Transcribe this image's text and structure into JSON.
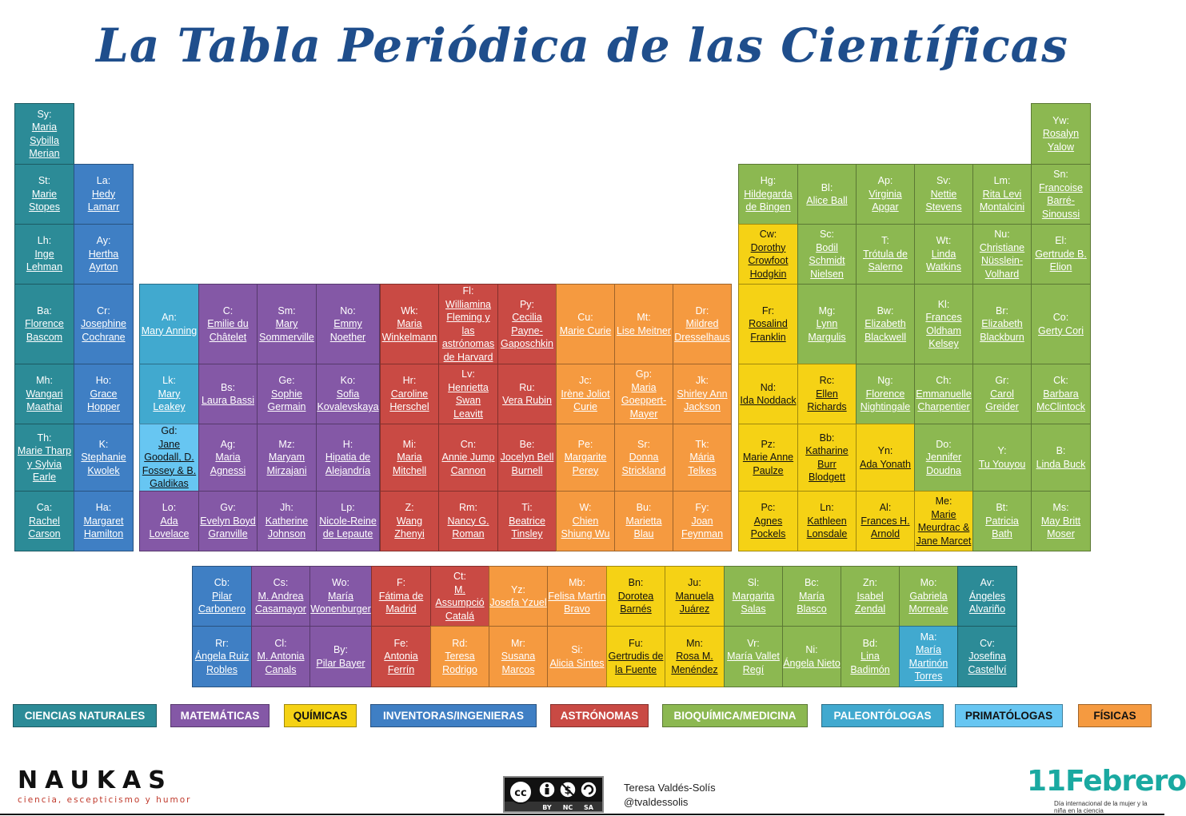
{
  "title": "La Tabla Periódica de las Científicas",
  "colors": {
    "naturales": "#2c8b97",
    "matematicas": "#8458a6",
    "quimicas": "#f5d215",
    "inventoras": "#3f7fc4",
    "astronomas": "#c94a44",
    "bioquimica": "#8cb851",
    "paleontologas": "#41a9cf",
    "primatologas": "#67c6f2",
    "fisicas": "#f59a40"
  },
  "legend": [
    {
      "label": "CIENCIAS NATURALES",
      "cat": "naturales"
    },
    {
      "label": "MATEMÁTICAS",
      "cat": "matematicas"
    },
    {
      "label": "QUÍMICAS",
      "cat": "quimicas"
    },
    {
      "label": "INVENTORAS/INGENIERAS",
      "cat": "inventoras"
    },
    {
      "label": "ASTRÓNOMAS",
      "cat": "astronomas"
    },
    {
      "label": "BIOQUÍMICA/MEDICINA",
      "cat": "bioquimica"
    },
    {
      "label": "PALEONTÓLOGAS",
      "cat": "paleontologas"
    },
    {
      "label": "PRIMATÓLOGAS",
      "cat": "primatologas"
    },
    {
      "label": "FÍSICAS",
      "cat": "fisicas"
    }
  ],
  "elements": [
    {
      "sym": "Sy:",
      "name": "Maria\nSybilla\nMerian",
      "cat": "naturales"
    },
    {
      "sym": "St:",
      "name": "Marie\nStopes",
      "cat": "naturales"
    },
    {
      "sym": "La:",
      "name": "Hedy\nLamarr",
      "cat": "inventoras"
    },
    {
      "sym": "Lh:",
      "name": "Inge\nLehman",
      "cat": "naturales"
    },
    {
      "sym": "Ay:",
      "name": "Hertha\nAyrton",
      "cat": "inventoras"
    },
    {
      "sym": "Ba:",
      "name": "Florence\nBascom",
      "cat": "naturales"
    },
    {
      "sym": "Cr:",
      "name": "Josephine\nCochrane",
      "cat": "inventoras"
    },
    {
      "sym": "Mh:",
      "name": "Wangari\nMaathai",
      "cat": "naturales"
    },
    {
      "sym": "Ho:",
      "name": "Grace\nHopper",
      "cat": "inventoras"
    },
    {
      "sym": "Th:",
      "name": "Marie Tharp\ny Sylvia\nEarle",
      "cat": "naturales"
    },
    {
      "sym": "K:",
      "name": "Stephanie\nKwolek",
      "cat": "inventoras"
    },
    {
      "sym": "Ca:",
      "name": "Rachel\nCarson",
      "cat": "naturales"
    },
    {
      "sym": "Ha:",
      "name": "Margaret\nHamilton",
      "cat": "inventoras"
    },
    {
      "sym": "An:",
      "name": "Mary Anning",
      "cat": "paleontologas"
    },
    {
      "sym": "C:",
      "name": "Emilie du\nChâtelet",
      "cat": "matematicas"
    },
    {
      "sym": "Sm:",
      "name": "Mary\nSommerville",
      "cat": "matematicas"
    },
    {
      "sym": "No:",
      "name": "Emmy\nNoether",
      "cat": "matematicas"
    },
    {
      "sym": "Wk:",
      "name": "Maria\nWinkelmann",
      "cat": "astronomas"
    },
    {
      "sym": "Fl:",
      "name": "Williamina\nFleming y\nlas\nastrónomas\nde Harvard",
      "cat": "astronomas"
    },
    {
      "sym": "Py:",
      "name": "Cecilia\nPayne-\nGaposchkin",
      "cat": "astronomas"
    },
    {
      "sym": "Cu:",
      "name": "Marie Curie",
      "cat": "fisicas"
    },
    {
      "sym": "Mt:",
      "name": "Lise Meitner",
      "cat": "fisicas"
    },
    {
      "sym": "Dr:",
      "name": "Mildred\nDresselhaus",
      "cat": "fisicas"
    },
    {
      "sym": "Lk:",
      "name": "Mary\nLeakey",
      "cat": "paleontologas"
    },
    {
      "sym": "Bs:",
      "name": "Laura Bassi",
      "cat": "matematicas"
    },
    {
      "sym": "Ge:",
      "name": "Sophie\nGermain",
      "cat": "matematicas"
    },
    {
      "sym": "Ko:",
      "name": "Sofia\nKovalevskaya",
      "cat": "matematicas"
    },
    {
      "sym": "Hr:",
      "name": "Caroline\nHerschel",
      "cat": "astronomas"
    },
    {
      "sym": "Lv:",
      "name": "Henrietta\nSwan\nLeavitt",
      "cat": "astronomas"
    },
    {
      "sym": "Ru:",
      "name": "Vera Rubin",
      "cat": "astronomas"
    },
    {
      "sym": "Jc:",
      "name": "Irène Joliot\nCurie",
      "cat": "fisicas"
    },
    {
      "sym": "Gp:",
      "name": "Maria\nGoeppert-\nMayer",
      "cat": "fisicas"
    },
    {
      "sym": "Jk:",
      "name": "Shirley Ann\nJackson",
      "cat": "fisicas"
    },
    {
      "sym": "Gd:",
      "name": "Jane\nGoodall, D.\nFossey & B.\nGaldikas",
      "cat": "primatologas"
    },
    {
      "sym": "Ag:",
      "name": "Maria\nAgnessi",
      "cat": "matematicas"
    },
    {
      "sym": "Mz:",
      "name": "Maryam\nMirzajani",
      "cat": "matematicas"
    },
    {
      "sym": "H:",
      "name": "Hipatia de\nAlejandría",
      "cat": "matematicas"
    },
    {
      "sym": "Mi:",
      "name": "Maria\nMitchell",
      "cat": "astronomas"
    },
    {
      "sym": "Cn:",
      "name": "Annie Jump\nCannon",
      "cat": "astronomas"
    },
    {
      "sym": "Be:",
      "name": "Jocelyn Bell\nBurnell",
      "cat": "astronomas"
    },
    {
      "sym": "Pe:",
      "name": "Margarite\nPerey",
      "cat": "fisicas"
    },
    {
      "sym": "Sr:",
      "name": "Donna\nStrickland",
      "cat": "fisicas"
    },
    {
      "sym": "Tk:",
      "name": "Mária\nTelkes",
      "cat": "fisicas"
    },
    {
      "sym": "Lo:",
      "name": "Ada\nLovelace",
      "cat": "matematicas"
    },
    {
      "sym": "Gv:",
      "name": "Evelyn Boyd\nGranville",
      "cat": "matematicas"
    },
    {
      "sym": "Jh:",
      "name": "Katherine\nJohnson",
      "cat": "matematicas"
    },
    {
      "sym": "Lp:",
      "name": "Nicole-Reine\nde Lepaute",
      "cat": "matematicas"
    },
    {
      "sym": "Z:",
      "name": "Wang\nZhenyi",
      "cat": "astronomas"
    },
    {
      "sym": "Rm:",
      "name": "Nancy G.\nRoman",
      "cat": "astronomas"
    },
    {
      "sym": "Ti:",
      "name": "Beatrice\nTinsley",
      "cat": "astronomas"
    },
    {
      "sym": "W:",
      "name": "Chien\nShiung Wu",
      "cat": "fisicas"
    },
    {
      "sym": "Bu:",
      "name": "Marietta\nBlau",
      "cat": "fisicas"
    },
    {
      "sym": "Fy:",
      "name": "Joan\nFeynman",
      "cat": "fisicas"
    },
    {
      "sym": "Yw:",
      "name": "Rosalyn\nYalow",
      "cat": "bioquimica"
    },
    {
      "sym": "Hg:",
      "name": "Hildegarda\nde Bingen",
      "cat": "bioquimica"
    },
    {
      "sym": "Bl:",
      "name": "Alice Ball",
      "cat": "bioquimica"
    },
    {
      "sym": "Ap:",
      "name": "Virginia\nApgar",
      "cat": "bioquimica"
    },
    {
      "sym": "Sv:",
      "name": "Nettie\nStevens",
      "cat": "bioquimica"
    },
    {
      "sym": "Lm:",
      "name": "Rita Levi\nMontalcini",
      "cat": "bioquimica"
    },
    {
      "sym": "Sn:",
      "name": "Francoise\nBarré-\nSinoussi",
      "cat": "bioquimica"
    },
    {
      "sym": "Cw:",
      "name": "Dorothy\nCrowfoot\nHodgkin",
      "cat": "quimicas"
    },
    {
      "sym": "Sc:",
      "name": "Bodil\nSchmidt\nNielsen",
      "cat": "bioquimica"
    },
    {
      "sym": "T:",
      "name": "Trótula de\nSalerno",
      "cat": "bioquimica"
    },
    {
      "sym": "Wt:",
      "name": "Linda\nWatkins",
      "cat": "bioquimica"
    },
    {
      "sym": "Nu:",
      "name": "Christiane\nNüsslein-\nVolhard",
      "cat": "bioquimica"
    },
    {
      "sym": "El:",
      "name": "Gertrude B.\nElion",
      "cat": "bioquimica"
    },
    {
      "sym": "Fr:",
      "name": "Rosalind\nFranklin",
      "cat": "quimicas"
    },
    {
      "sym": "Mg:",
      "name": "Lynn\nMargulis",
      "cat": "bioquimica"
    },
    {
      "sym": "Bw:",
      "name": "Elizabeth\nBlackwell",
      "cat": "bioquimica"
    },
    {
      "sym": "Kl:",
      "name": "Frances\nOldham\nKelsey",
      "cat": "bioquimica"
    },
    {
      "sym": "Br:",
      "name": "Elizabeth\nBlackburn",
      "cat": "bioquimica"
    },
    {
      "sym": "Co:",
      "name": "Gerty Cori",
      "cat": "bioquimica"
    },
    {
      "sym": "Nd:",
      "name": "Ida Noddack",
      "cat": "quimicas"
    },
    {
      "sym": "Rc:",
      "name": "Ellen\nRichards",
      "cat": "quimicas"
    },
    {
      "sym": "Ng:",
      "name": "Florence\nNightingale",
      "cat": "bioquimica"
    },
    {
      "sym": "Ch:",
      "name": "Emmanuelle\nCharpentier",
      "cat": "bioquimica"
    },
    {
      "sym": "Gr:",
      "name": "Carol\nGreider",
      "cat": "bioquimica"
    },
    {
      "sym": "Ck:",
      "name": "Barbara\nMcClintock",
      "cat": "bioquimica"
    },
    {
      "sym": "Pz:",
      "name": "Marie Anne\nPaulze",
      "cat": "quimicas"
    },
    {
      "sym": "Bb:",
      "name": "Katharine\nBurr\nBlodgett",
      "cat": "quimicas"
    },
    {
      "sym": "Yn:",
      "name": "Ada Yonath",
      "cat": "quimicas"
    },
    {
      "sym": "Do:",
      "name": "Jennifer\nDoudna",
      "cat": "bioquimica"
    },
    {
      "sym": "Y:",
      "name": "Tu Youyou",
      "cat": "bioquimica"
    },
    {
      "sym": "B:",
      "name": "Linda Buck",
      "cat": "bioquimica"
    },
    {
      "sym": "Pc:",
      "name": "Agnes\nPockels",
      "cat": "quimicas"
    },
    {
      "sym": "Ln:",
      "name": "Kathleen\nLonsdale",
      "cat": "quimicas"
    },
    {
      "sym": "Al:",
      "name": "Frances H.\nArnold",
      "cat": "quimicas"
    },
    {
      "sym": "Me:",
      "name": "Marie\nMeurdrac &\nJane Marcet",
      "cat": "quimicas"
    },
    {
      "sym": "Bt:",
      "name": "Patricia\nBath",
      "cat": "bioquimica"
    },
    {
      "sym": "Ms:",
      "name": "May Britt\nMoser",
      "cat": "bioquimica"
    },
    {
      "sym": "Cb:",
      "name": "Pilar\nCarbonero",
      "cat": "inventoras"
    },
    {
      "sym": "Cs:",
      "name": "M. Andrea\nCasamayor",
      "cat": "matematicas"
    },
    {
      "sym": "Wo:",
      "name": "María\nWonenburger",
      "cat": "matematicas"
    },
    {
      "sym": "F:",
      "name": "Fátima de\nMadrid",
      "cat": "astronomas"
    },
    {
      "sym": "Ct:",
      "name": "M.\nAssumpció\nCatalá",
      "cat": "astronomas"
    },
    {
      "sym": "Yz:",
      "name": "Josefa Yzuel",
      "cat": "fisicas"
    },
    {
      "sym": "Mb:",
      "name": "Felisa Martín\nBravo",
      "cat": "fisicas"
    },
    {
      "sym": "Bn:",
      "name": "Dorotea\nBarnés",
      "cat": "quimicas"
    },
    {
      "sym": "Ju:",
      "name": "Manuela\nJuárez",
      "cat": "quimicas"
    },
    {
      "sym": "Sl:",
      "name": "Margarita\nSalas",
      "cat": "bioquimica"
    },
    {
      "sym": "Bc:",
      "name": "María Blasco",
      "cat": "bioquimica"
    },
    {
      "sym": "Zn:",
      "name": "Isabel\nZendal",
      "cat": "bioquimica"
    },
    {
      "sym": "Mo:",
      "name": "Gabriela\nMorreale",
      "cat": "bioquimica"
    },
    {
      "sym": "Av:",
      "name": "Ángeles\nAlvariño",
      "cat": "naturales"
    },
    {
      "sym": "Rr:",
      "name": "Ángela Ruiz\nRobles",
      "cat": "inventoras"
    },
    {
      "sym": "Cl:",
      "name": "M. Antonia\nCanals",
      "cat": "matematicas"
    },
    {
      "sym": "By:",
      "name": "Pilar Bayer",
      "cat": "matematicas"
    },
    {
      "sym": "Fe:",
      "name": "Antonia\nFerrín",
      "cat": "astronomas"
    },
    {
      "sym": "Rd:",
      "name": "Teresa\nRodrigo",
      "cat": "fisicas"
    },
    {
      "sym": "Mr:",
      "name": "Susana\nMarcos",
      "cat": "fisicas"
    },
    {
      "sym": "Si:",
      "name": "Alicia Sintes",
      "cat": "fisicas"
    },
    {
      "sym": "Fu:",
      "name": "Gertrudis de\nla Fuente",
      "cat": "quimicas"
    },
    {
      "sym": "Mn:",
      "name": "Rosa M.\nMenéndez",
      "cat": "quimicas"
    },
    {
      "sym": "Vr:",
      "name": "María Vallet\nRegí",
      "cat": "bioquimica"
    },
    {
      "sym": "Ni:",
      "name": "Ángela Nieto",
      "cat": "bioquimica"
    },
    {
      "sym": "Bd:",
      "name": "Lina\nBadimón",
      "cat": "bioquimica"
    },
    {
      "sym": "Ma:",
      "name": "María\nMartinón\nTorres",
      "cat": "paleontologas"
    },
    {
      "sym": "Cv:",
      "name": "Josefina\nCastellví",
      "cat": "naturales"
    }
  ],
  "footer": {
    "naukas_name": "NAUKAS",
    "naukas_tagline": "ciencia, escepticismo y humor",
    "cc_labels": [
      "cc",
      "BY",
      "NC",
      "SA"
    ],
    "author_name": "Teresa Valdés-Solís",
    "author_handle": "@tvaldessolis",
    "febrero_logo": "11Febrero",
    "febrero_sub": "Día internacional de la mujer y la niña en la ciencia"
  }
}
